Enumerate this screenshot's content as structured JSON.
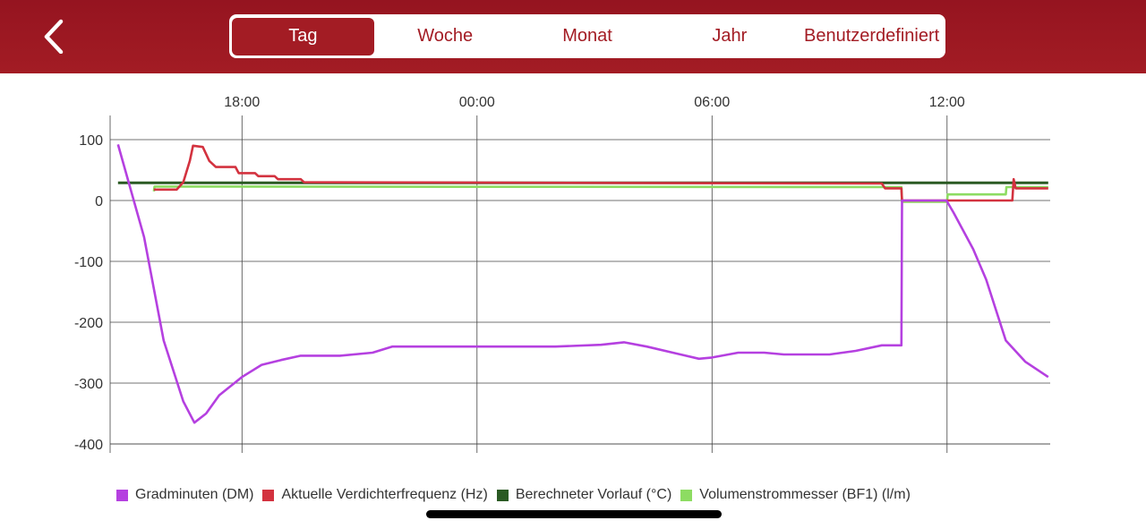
{
  "header": {
    "back_icon": "chevron-left-icon",
    "tabs": [
      {
        "label": "Tag",
        "active": true
      },
      {
        "label": "Woche",
        "active": false
      },
      {
        "label": "Monat",
        "active": false
      },
      {
        "label": "Jahr",
        "active": false
      },
      {
        "label": "Benutzerdefiniert",
        "active": false
      }
    ]
  },
  "colors": {
    "brand": "#a31c24",
    "white": "#ffffff"
  },
  "chart_data": {
    "type": "line",
    "x_unit": "time of day",
    "x_ticks": [
      "18:00",
      "00:00",
      "06:00",
      "12:00"
    ],
    "x_range": [
      "14:38",
      "14:35 (next day)"
    ],
    "y_ticks": [
      100,
      0,
      -100,
      -200,
      -300,
      -400
    ],
    "ylim": [
      -410,
      130
    ],
    "grid": true,
    "legend_position": "bottom",
    "series": [
      {
        "name": "Gradminuten (DM)",
        "color": "#b540e0",
        "points": [
          [
            "14:50",
            92
          ],
          [
            "15:30",
            -60
          ],
          [
            "16:00",
            -230
          ],
          [
            "16:30",
            -330
          ],
          [
            "16:47",
            -365
          ],
          [
            "17:05",
            -350
          ],
          [
            "17:25",
            -320
          ],
          [
            "18:00",
            -290
          ],
          [
            "18:30",
            -270
          ],
          [
            "19:00",
            -262
          ],
          [
            "19:30",
            -255
          ],
          [
            "20:30",
            -255
          ],
          [
            "21:20",
            -250
          ],
          [
            "21:50",
            -240
          ],
          [
            "02:00",
            -240
          ],
          [
            "03:10",
            -237
          ],
          [
            "03:45",
            -233
          ],
          [
            "04:20",
            -240
          ],
          [
            "05:00",
            -250
          ],
          [
            "05:40",
            -260
          ],
          [
            "06:00",
            -258
          ],
          [
            "06:40",
            -250
          ],
          [
            "07:20",
            -250
          ],
          [
            "07:50",
            -253
          ],
          [
            "08:20",
            -253
          ],
          [
            "09:00",
            -253
          ],
          [
            "09:40",
            -247
          ],
          [
            "10:20",
            -238
          ],
          [
            "10:50",
            -238
          ],
          [
            "10:51",
            0
          ],
          [
            "11:59",
            0
          ],
          [
            "12:10",
            -20
          ],
          [
            "12:40",
            -80
          ],
          [
            "13:00",
            -130
          ],
          [
            "13:30",
            -230
          ],
          [
            "14:00",
            -265
          ],
          [
            "14:35",
            -290
          ]
        ]
      },
      {
        "name": "Aktuelle Verdichterfrequenz (Hz)",
        "color": "#d3323f",
        "points": [
          [
            "15:45",
            18
          ],
          [
            "16:20",
            18
          ],
          [
            "16:30",
            30
          ],
          [
            "16:40",
            65
          ],
          [
            "16:45",
            90
          ],
          [
            "17:00",
            88
          ],
          [
            "17:10",
            65
          ],
          [
            "17:20",
            55
          ],
          [
            "17:50",
            55
          ],
          [
            "17:55",
            45
          ],
          [
            "18:20",
            45
          ],
          [
            "18:25",
            40
          ],
          [
            "18:50",
            40
          ],
          [
            "18:55",
            35
          ],
          [
            "19:30",
            35
          ],
          [
            "19:35",
            30
          ],
          [
            "10:20",
            28
          ],
          [
            "10:25",
            20
          ],
          [
            "10:50",
            20
          ],
          [
            "10:51",
            0
          ],
          [
            "13:40",
            0
          ],
          [
            "13:42",
            35
          ],
          [
            "13:45",
            20
          ],
          [
            "14:35",
            20
          ]
        ]
      },
      {
        "name": "Berechneter Vorlauf (°C)",
        "color": "#2a5a23",
        "points": [
          [
            "14:50",
            29
          ],
          [
            "14:35",
            29
          ]
        ]
      },
      {
        "name": "Volumenstrommesser (BF1) (l/m)",
        "color": "#8ddc62",
        "points": [
          [
            "15:45",
            15
          ],
          [
            "15:46",
            23
          ],
          [
            "10:50",
            22
          ],
          [
            "10:51",
            -2
          ],
          [
            "12:00",
            -2
          ],
          [
            "12:01",
            10
          ],
          [
            "13:30",
            10
          ],
          [
            "13:31",
            22
          ],
          [
            "14:35",
            22
          ]
        ]
      }
    ]
  }
}
